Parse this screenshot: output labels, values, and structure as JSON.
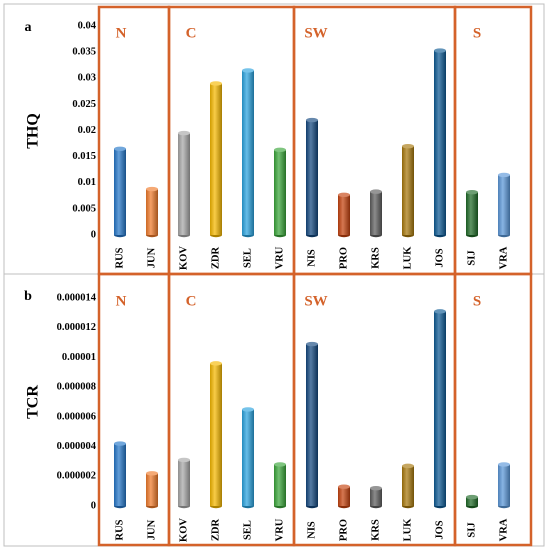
{
  "colors": {
    "group_box": "#d4622a",
    "group_label": "#d4622a",
    "divider": "#bfbfbf",
    "RUS": "#2577c9",
    "JUN": "#f07a2a",
    "KOV": "#a8a8a8",
    "ZDR": "#f5b800",
    "SEL": "#2aa3df",
    "VRU": "#3aa63a",
    "NIS": "#13487f",
    "PRO": "#c4420e",
    "KRS": "#5e5e5e",
    "LUK": "#a8780c",
    "JOS": "#0d5a94",
    "SIJ": "#1f6a27",
    "VRA": "#5a97d8"
  },
  "chart_data": [
    {
      "type": "bar",
      "panel_label": "a",
      "ylabel": "THQ",
      "ylim": [
        0,
        0.04
      ],
      "yticks": [
        "0",
        "0.005",
        "0.01",
        "0.015",
        "0.02",
        "0.025",
        "0.03",
        "0.035",
        "0.04"
      ],
      "categories": [
        "RUS",
        "JUN",
        "KOV",
        "ZDR",
        "SEL",
        "VRU",
        "NIS",
        "PRO",
        "KRS",
        "LUK",
        "JOS",
        "SIJ",
        "VRA"
      ],
      "values": [
        0.0165,
        0.0088,
        0.0195,
        0.029,
        0.0315,
        0.0163,
        0.022,
        0.0077,
        0.0083,
        0.017,
        0.0353,
        0.0082,
        0.0115
      ],
      "groups": [
        {
          "label": "N",
          "categories": [
            "RUS",
            "JUN"
          ]
        },
        {
          "label": "C",
          "categories": [
            "KOV",
            "ZDR",
            "SEL",
            "VRU"
          ]
        },
        {
          "label": "SW",
          "categories": [
            "NIS",
            "PRO",
            "KRS",
            "LUK",
            "JOS"
          ]
        },
        {
          "label": "S",
          "categories": [
            "SIJ",
            "VRA"
          ]
        }
      ]
    },
    {
      "type": "bar",
      "panel_label": "b",
      "ylabel": "TCR",
      "ylim": [
        0,
        1.4e-05
      ],
      "yticks": [
        "0",
        "0.000002",
        "0.000004",
        "0.000006",
        "0.000008",
        "0.00001",
        "0.000012",
        "0.000014"
      ],
      "categories": [
        "RUS",
        "JUN",
        "KOV",
        "ZDR",
        "SEL",
        "VRU",
        "NIS",
        "PRO",
        "KRS",
        "LUK",
        "JOS",
        "SIJ",
        "VRA"
      ],
      "values": [
        4.2e-06,
        2.2e-06,
        3.1e-06,
        9.6e-06,
        6.5e-06,
        2.8e-06,
        1.09e-05,
        1.3e-06,
        1.2e-06,
        2.7e-06,
        1.31e-05,
        6e-07,
        2.8e-06
      ],
      "groups": [
        {
          "label": "N",
          "categories": [
            "RUS",
            "JUN"
          ]
        },
        {
          "label": "C",
          "categories": [
            "KOV",
            "ZDR",
            "SEL",
            "VRU"
          ]
        },
        {
          "label": "SW",
          "categories": [
            "NIS",
            "PRO",
            "KRS",
            "LUK",
            "JOS"
          ]
        },
        {
          "label": "S",
          "categories": [
            "SIJ",
            "VRA"
          ]
        }
      ]
    }
  ]
}
